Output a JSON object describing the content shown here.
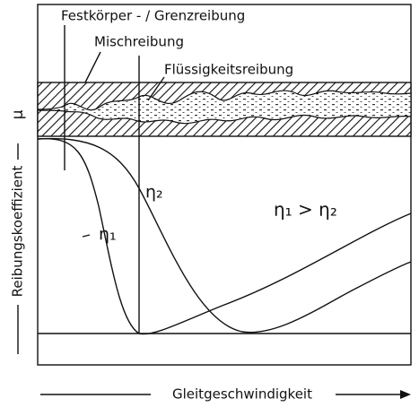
{
  "labels": {
    "boundary": "Festkörper - / Grenzreibung",
    "mixed": "Mischreibung",
    "fluid": "Flüssigkeitsreibung"
  },
  "axes": {
    "y_symbol": "μ",
    "y_label": "Reibungskoeffizient",
    "x_label": "Gleitgeschwindigkeit"
  },
  "curves": {
    "eta1": "η₁",
    "eta2": "η₂",
    "relation": "η₁ > η₂"
  }
}
